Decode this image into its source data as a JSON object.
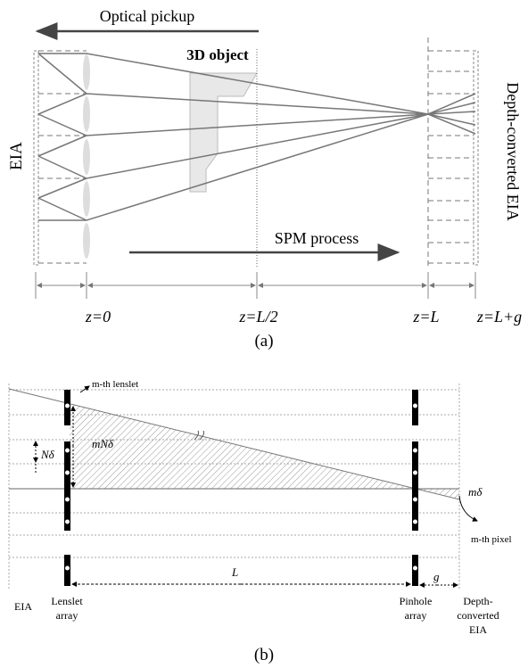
{
  "panel_a": {
    "optical_pickup": "Optical pickup",
    "object": "3D object",
    "eia": "EIA",
    "depth_converted_eia": "Depth-converted EIA",
    "spm_process": "SPM process",
    "positions": [
      "z=0",
      "z=L/2",
      "z=L",
      "z=L+g"
    ],
    "caption": "(a)"
  },
  "panel_b": {
    "lenslet_label": "m-th lenslet",
    "n_delta": "Nδ",
    "mn_delta": "mNδ",
    "m_delta": "mδ",
    "pixel_label": "m-th pixel",
    "distance_l": "L",
    "distance_g": "g",
    "eia": "EIA",
    "lenslet_array": [
      "Lenslet",
      "array"
    ],
    "pinhole_array": [
      "Pinhole",
      "array"
    ],
    "depth_converted_eia": [
      "Depth-",
      "converted",
      "EIA"
    ],
    "caption": "(b)"
  }
}
